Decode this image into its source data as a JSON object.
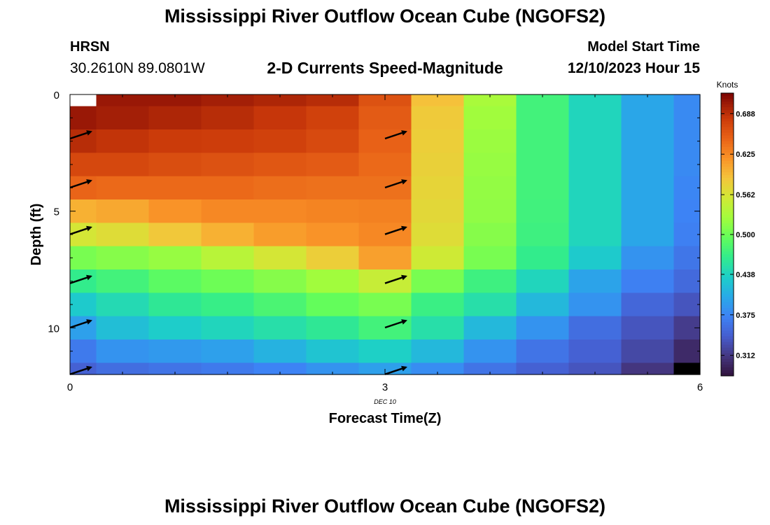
{
  "header": {
    "title": "Mississippi River Outflow Ocean Cube (NGOFS2)",
    "station": "HRSN",
    "coords": "30.2610N  89.0801W",
    "subtitle": "2-D Currents Speed-Magnitude",
    "start_label": "Model Start Time",
    "start_value": "12/10/2023 Hour 15"
  },
  "footer": {
    "title": "Mississippi River Outflow Ocean Cube (NGOFS2)"
  },
  "chart_data": {
    "type": "heatmap",
    "xlabel": "Forecast Time(Z)",
    "ylabel": "Depth (ft)",
    "date_label": "DEC 10",
    "x_ticks": [
      "0",
      "3",
      "6"
    ],
    "y_ticks": [
      "0",
      "5",
      "10"
    ],
    "xlim": [
      0,
      6
    ],
    "ylim": [
      0,
      12
    ],
    "y_inverted": true,
    "colorbar": {
      "label": "Knots",
      "ticks": [
        "0.688",
        "0.625",
        "0.562",
        "0.500",
        "0.438",
        "0.375",
        "0.312"
      ],
      "tick_values": [
        0.688,
        0.625,
        0.562,
        0.5,
        0.438,
        0.375,
        0.312
      ],
      "range": [
        0.28,
        0.72
      ]
    },
    "x_edges": [
      0,
      0.25,
      0.75,
      1.25,
      1.75,
      2.25,
      2.75,
      3.25,
      3.75,
      4.25,
      4.75,
      5.25,
      5.75,
      6
    ],
    "y_edges": [
      0,
      0.5,
      1.5,
      2.5,
      3.5,
      4.5,
      5.5,
      6.5,
      7.5,
      8.5,
      9.5,
      10.5,
      11.5,
      12
    ],
    "values": [
      [
        null,
        0.705,
        0.705,
        0.7,
        0.695,
        0.69,
        0.662,
        0.59,
        0.53,
        0.475,
        0.44,
        0.4,
        0.378
      ],
      [
        0.705,
        0.7,
        0.695,
        0.69,
        0.683,
        0.675,
        0.655,
        0.583,
        0.525,
        0.475,
        0.44,
        0.4,
        0.378
      ],
      [
        0.69,
        0.685,
        0.68,
        0.678,
        0.675,
        0.668,
        0.65,
        0.58,
        0.522,
        0.475,
        0.44,
        0.4,
        0.378
      ],
      [
        0.67,
        0.67,
        0.665,
        0.662,
        0.658,
        0.655,
        0.645,
        0.578,
        0.52,
        0.475,
        0.44,
        0.4,
        0.378
      ],
      [
        0.648,
        0.645,
        0.645,
        0.645,
        0.642,
        0.64,
        0.64,
        0.575,
        0.518,
        0.475,
        0.44,
        0.4,
        0.375
      ],
      [
        0.6,
        0.605,
        0.618,
        0.625,
        0.625,
        0.628,
        0.63,
        0.572,
        0.517,
        0.474,
        0.44,
        0.4,
        0.372
      ],
      [
        0.56,
        0.568,
        0.585,
        0.6,
        0.612,
        0.618,
        0.625,
        0.568,
        0.512,
        0.472,
        0.44,
        0.4,
        0.37
      ],
      [
        0.505,
        0.512,
        0.52,
        0.54,
        0.56,
        0.58,
        0.61,
        0.555,
        0.505,
        0.465,
        0.43,
        0.385,
        0.362
      ],
      [
        0.465,
        0.475,
        0.49,
        0.5,
        0.512,
        0.525,
        0.55,
        0.505,
        0.472,
        0.44,
        0.398,
        0.37,
        0.352
      ],
      [
        0.43,
        0.445,
        0.46,
        0.468,
        0.48,
        0.495,
        0.505,
        0.47,
        0.45,
        0.415,
        0.385,
        0.35,
        0.335
      ],
      [
        0.395,
        0.42,
        0.432,
        0.44,
        0.45,
        0.46,
        0.475,
        0.45,
        0.415,
        0.385,
        0.355,
        0.335,
        0.315
      ],
      [
        0.365,
        0.385,
        0.39,
        0.395,
        0.41,
        0.425,
        0.435,
        0.415,
        0.385,
        0.36,
        0.345,
        0.325,
        0.3
      ],
      [
        0.345,
        0.355,
        0.36,
        0.365,
        0.372,
        0.385,
        0.395,
        0.38,
        0.36,
        0.345,
        0.335,
        0.31,
        null
      ]
    ],
    "vectors": {
      "x": [
        0,
        3
      ],
      "depths": [
        1.8,
        3.9,
        5.9,
        8.0,
        9.9,
        11.9
      ]
    }
  }
}
